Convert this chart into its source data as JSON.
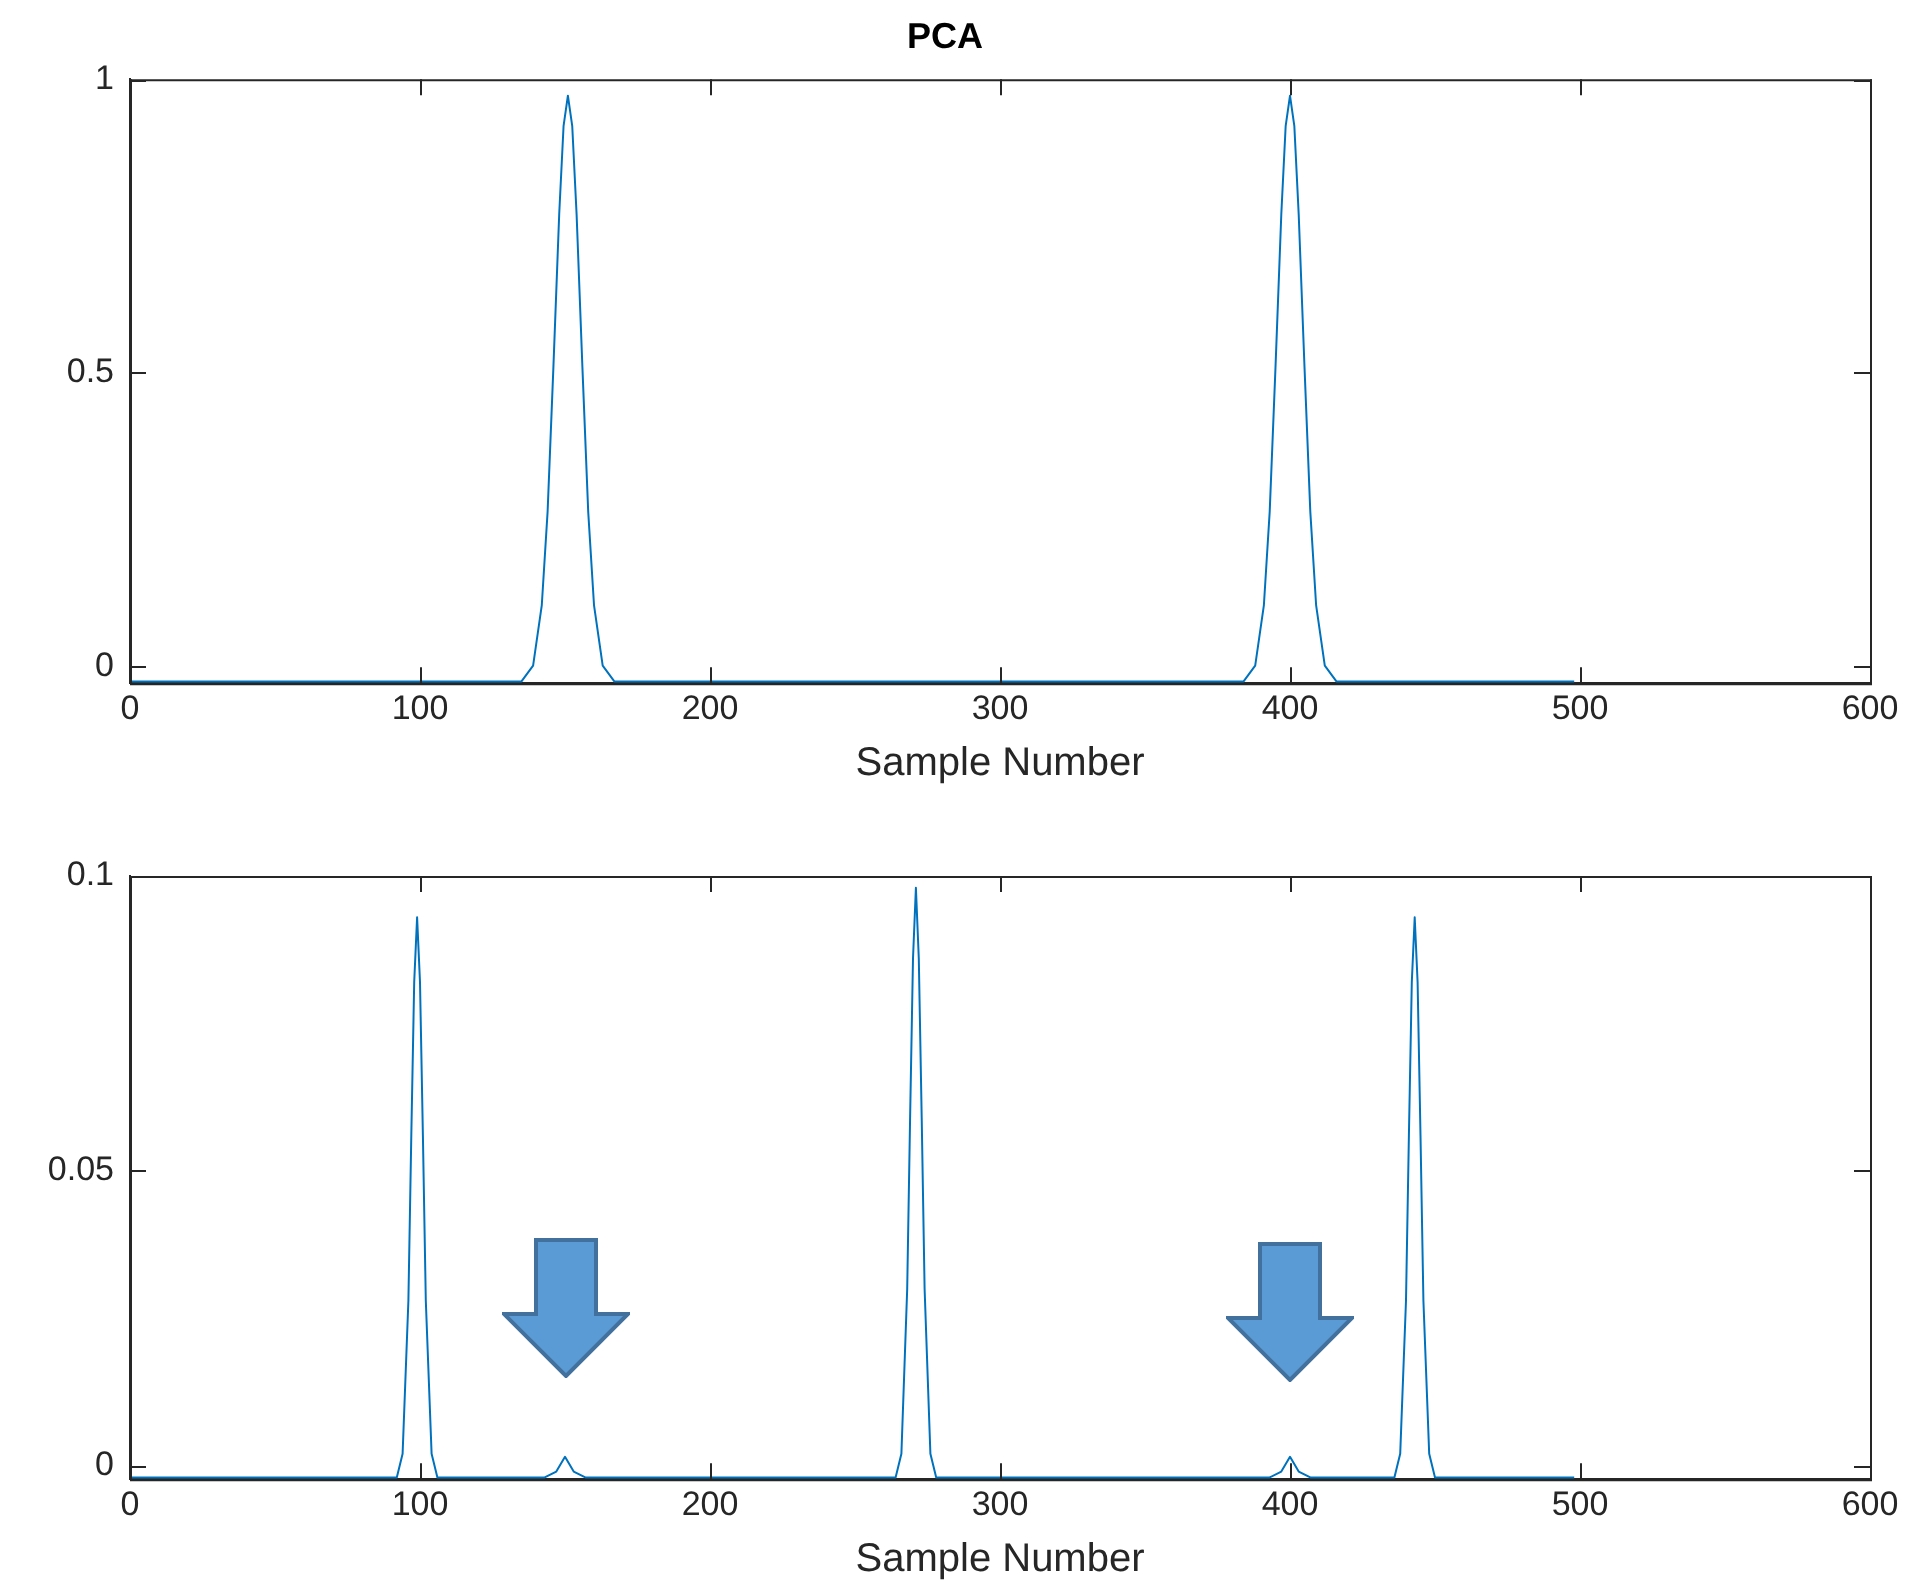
{
  "chart_data": [
    {
      "type": "line",
      "title": "PCA",
      "xlabel": "Sample Number",
      "color": "#0072bd",
      "xlim": [
        0,
        600
      ],
      "xticks": [
        0,
        100,
        200,
        300,
        400,
        500,
        600
      ],
      "ylim": [
        -0.028,
        1
      ],
      "yticks": [
        0,
        0.5,
        1
      ],
      "grid": false,
      "legend": false,
      "x": [
        0,
        135,
        139,
        142,
        144,
        146,
        148,
        149.5,
        151,
        152.5,
        154,
        156,
        158,
        160,
        163,
        167,
        384,
        388,
        391,
        393,
        395,
        397,
        398.5,
        400,
        401.5,
        403,
        405,
        407,
        409,
        412,
        416,
        498
      ],
      "values": [
        -0.025,
        -0.025,
        0.002,
        0.105,
        0.264,
        0.51,
        0.77,
        0.92,
        0.972,
        0.92,
        0.77,
        0.51,
        0.264,
        0.105,
        0.002,
        -0.025,
        -0.025,
        0.002,
        0.105,
        0.264,
        0.51,
        0.77,
        0.92,
        0.972,
        0.92,
        0.77,
        0.51,
        0.264,
        0.105,
        0.002,
        -0.025,
        -0.025
      ]
    },
    {
      "type": "line",
      "xlabel": "Sample Number",
      "color": "#0072bd",
      "xlim": [
        0,
        600
      ],
      "xticks": [
        0,
        100,
        200,
        300,
        400,
        500,
        600
      ],
      "ylim": [
        -0.0023,
        0.1
      ],
      "yticks": [
        0,
        0.05,
        0.1
      ],
      "grid": false,
      "legend": false,
      "x": [
        0,
        92,
        94,
        96,
        97,
        98,
        99,
        100,
        101,
        102,
        104,
        106,
        143,
        147,
        150,
        153,
        157,
        264,
        266,
        268,
        269,
        270,
        271,
        272,
        273,
        274,
        276,
        278,
        393,
        397,
        400,
        403,
        407,
        436,
        438,
        440,
        441,
        442,
        443,
        444,
        445,
        446,
        448,
        450,
        498
      ],
      "values": [
        -0.002,
        -0.002,
        0.002,
        0.028,
        0.056,
        0.082,
        0.093,
        0.082,
        0.056,
        0.028,
        0.002,
        -0.002,
        -0.002,
        -0.001,
        0.0015,
        -0.001,
        -0.002,
        -0.002,
        0.002,
        0.03,
        0.059,
        0.086,
        0.098,
        0.086,
        0.059,
        0.03,
        0.002,
        -0.002,
        -0.002,
        -0.001,
        0.0015,
        -0.001,
        -0.002,
        -0.002,
        0.002,
        0.028,
        0.056,
        0.082,
        0.093,
        0.082,
        0.056,
        0.028,
        0.002,
        -0.002,
        -0.002
      ]
    }
  ]
}
